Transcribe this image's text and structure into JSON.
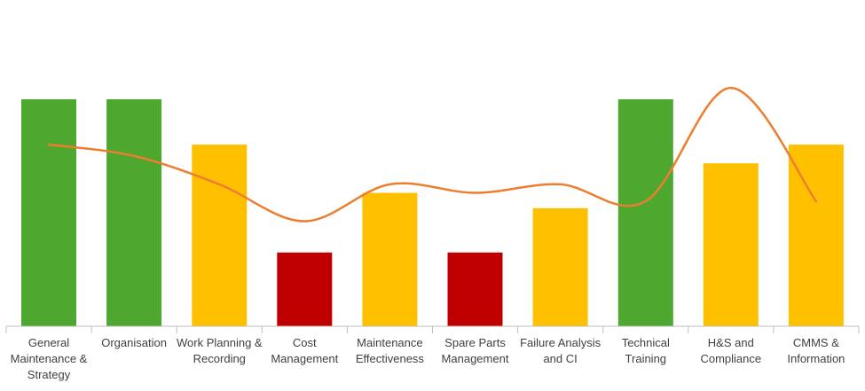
{
  "chart_data": {
    "type": "bar",
    "categories": [
      "General Maintenance & Strategy",
      "Organisation",
      "Work Planning & Recording",
      "Cost Management",
      "Maintenance Effectiveness",
      "Spare Parts Management",
      "Failure Analysis and CI",
      "Technical Training",
      "H&S and Compliance",
      "CMMS & Information"
    ],
    "category_label_lines": [
      [
        "General",
        "Maintenance &",
        "Strategy"
      ],
      [
        "Organisation"
      ],
      [
        "Work Planning &",
        "Recording"
      ],
      [
        "Cost",
        "Management"
      ],
      [
        "Maintenance",
        "Effectiveness"
      ],
      [
        "Spare Parts",
        "Management"
      ],
      [
        "Failure Analysis",
        "and CI"
      ],
      [
        "Technical",
        "Training"
      ],
      [
        "H&S and",
        "Compliance"
      ],
      [
        "CMMS &",
        "Information"
      ]
    ],
    "series": [
      {
        "type": "bar",
        "values": [
          4.0,
          4.0,
          3.2,
          1.3,
          2.35,
          1.3,
          2.08,
          4.0,
          2.87,
          3.2
        ],
        "colors": [
          "#4ea72e",
          "#4ea72e",
          "#ffc000",
          "#c00000",
          "#ffc000",
          "#c00000",
          "#ffc000",
          "#4ea72e",
          "#ffc000",
          "#ffc000"
        ]
      },
      {
        "type": "line",
        "smooth": true,
        "color": "#ed7d31",
        "values": [
          3.2,
          3.0,
          2.5,
          1.85,
          2.5,
          2.35,
          2.5,
          2.2,
          4.2,
          2.2
        ]
      }
    ],
    "ylim": [
      0,
      5.7
    ],
    "grid": false,
    "legend": "none"
  }
}
